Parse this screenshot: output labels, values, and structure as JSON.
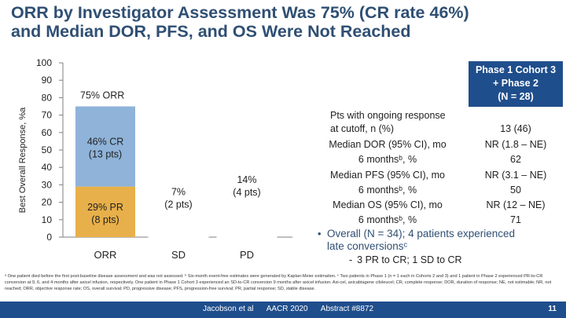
{
  "slide": {
    "title_line1": "ORR by Investigator Assessment Was 75% (CR rate 46%)",
    "title_line2": "and Median DOR, PFS, and OS Were Not Reached",
    "page_number": "11"
  },
  "chart_data": {
    "type": "bar",
    "ylabel": "Best Overall Response, %a",
    "ylim": [
      0,
      100
    ],
    "yticks": [
      0,
      10,
      20,
      30,
      40,
      50,
      60,
      70,
      80,
      90,
      100
    ],
    "categories": [
      "ORR",
      "SD",
      "PD"
    ],
    "orr_stack": [
      {
        "name": "PR",
        "value": 29,
        "label_line1": "29% PR",
        "label_line2": "(8 pts)",
        "color": "#e8b04a"
      },
      {
        "name": "CR",
        "value": 46,
        "label_line1": "46% CR",
        "label_line2": "(13 pts)",
        "color": "#8fb3d9"
      }
    ],
    "orr_total_label": "75% ORR",
    "other_bars": [
      {
        "category": "SD",
        "value": 7,
        "label_line1": "7%",
        "label_line2": "(2 pts)"
      },
      {
        "category": "PD",
        "value": 14,
        "label_line1": "14%",
        "label_line2": "(4 pts)"
      }
    ],
    "grid": false,
    "colors": {
      "pr": "#e8b04a",
      "cr": "#8fb3d9",
      "axis": "#7f7f7f"
    }
  },
  "table": {
    "header": [
      "Phase 1 Cohort 3",
      "+ Phase 2",
      "(N = 28)"
    ],
    "rows": [
      {
        "label": "Pts with ongoing response",
        "value": ""
      },
      {
        "label": "at cutoff, n (%)",
        "value": "13 (46)"
      },
      {
        "label": "Median DOR (95% CI), mo",
        "value": "NR (1.8 – NE)"
      },
      {
        "label": "6 monthsᵇ, %",
        "value": "62"
      },
      {
        "label": "Median PFS (95% CI), mo",
        "value": "NR (3.1 – NE)"
      },
      {
        "label": "6 monthsᵇ, %",
        "value": "50"
      },
      {
        "label": "Median OS (95% CI), mo",
        "value": "NR (12 – NE)"
      },
      {
        "label": "6 monthsᵇ, %",
        "value": "71"
      }
    ]
  },
  "bullets": {
    "main_line1": "Overall (N = 34); 4 patients experienced",
    "main_line2": "late conversionsᶜ",
    "sub": "3 PR to CR; 1 SD to CR"
  },
  "footnote": "ᵃ One patient died before the first post-baseline disease assessment and was not assessed. ᵇ Six-month event-free estimates were generated by Kaplan-Meier estimation. ᶜ Two patients in Phase 1 (n = 1 each in Cohorts 2 and 3) and 1 patient in Phase 2 experienced PR-to-CR conversion at 9, 6, and 4 months after axicel infusion, respectively. One patient in Phase 1 Cohort 3 experienced an SD-to-CR conversion 9 months after axicel infusion. Axi-cel, axicabtagene ciloleucel; CR, complete response; DOR, duration of response; NE, not estimable; NR, not reached; ORR, objective response rate; OS, overall survival; PD, progressive disease; PFS, progression-free survival; PR, partial response; SD, stable disease.",
  "footer": {
    "authors": "Jacobson et al",
    "meeting": "AACR 2020",
    "abstract": "Abstract #8872"
  }
}
